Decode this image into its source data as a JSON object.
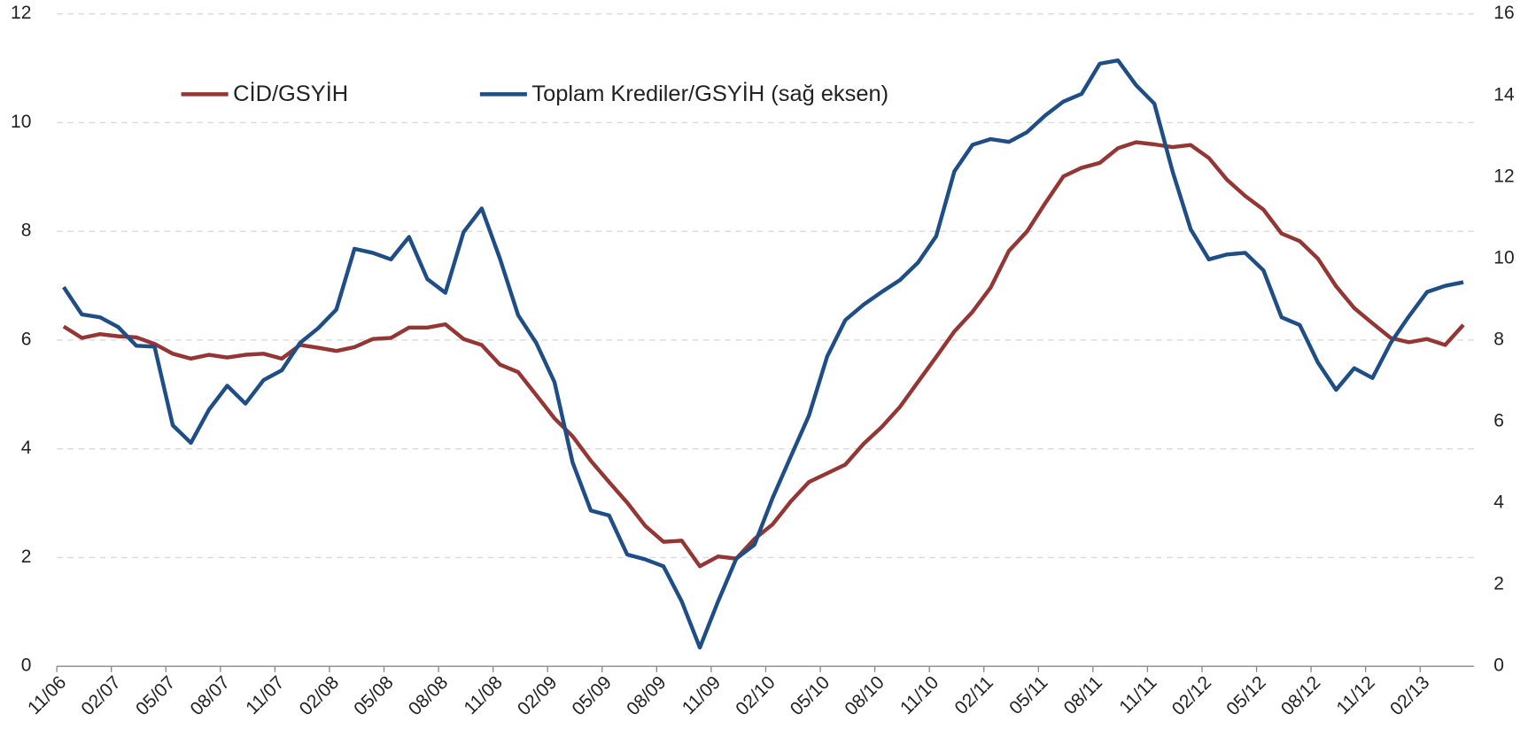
{
  "chart_data": {
    "type": "line",
    "categories": [
      "11/06",
      null,
      null,
      "02/07",
      null,
      null,
      "05/07",
      null,
      null,
      "08/07",
      null,
      null,
      "11/07",
      null,
      null,
      "02/08",
      null,
      null,
      "05/08",
      null,
      null,
      "08/08",
      null,
      null,
      "11/08",
      null,
      null,
      "02/09",
      null,
      null,
      "05/09",
      null,
      null,
      "08/09",
      null,
      null,
      "11/09",
      null,
      null,
      "02/10",
      null,
      null,
      "05/10",
      null,
      null,
      "08/10",
      null,
      null,
      "11/10",
      null,
      null,
      "02/11",
      null,
      null,
      "05/11",
      null,
      null,
      "08/11",
      null,
      null,
      "11/11",
      null,
      null,
      "02/12",
      null,
      null,
      "05/12",
      null,
      null,
      "08/12",
      null,
      null,
      "11/12",
      null,
      null,
      "02/13",
      null,
      null
    ],
    "series": [
      {
        "name": "CİD/GSYİH",
        "color": "#943634",
        "axis": "y",
        "values": [
          6.25,
          6.04,
          6.11,
          6.07,
          6.05,
          5.93,
          5.75,
          5.66,
          5.73,
          5.68,
          5.73,
          5.75,
          5.66,
          5.91,
          5.86,
          5.8,
          5.87,
          6.02,
          6.04,
          6.23,
          6.23,
          6.29,
          6.02,
          5.91,
          5.55,
          5.41,
          4.99,
          4.56,
          4.23,
          3.78,
          3.39,
          3.01,
          2.58,
          2.29,
          2.31,
          1.84,
          2.02,
          1.98,
          2.34,
          2.61,
          3.03,
          3.39,
          3.55,
          3.71,
          4.09,
          4.4,
          4.77,
          5.23,
          5.69,
          6.16,
          6.52,
          6.97,
          7.64,
          8.0,
          8.52,
          9.01,
          9.17,
          9.26,
          9.53,
          9.64,
          9.6,
          9.55,
          9.59,
          9.35,
          8.95,
          8.65,
          8.4,
          7.96,
          7.82,
          7.5,
          6.99,
          6.59,
          6.31,
          6.04,
          5.96,
          6.02,
          5.91,
          6.28
        ]
      },
      {
        "name": "Toplam Krediler/GSYİH (sağ eksen)",
        "color": "#1f4e86",
        "axis": "y2",
        "values": [
          9.3,
          8.63,
          8.56,
          8.32,
          7.86,
          7.84,
          5.91,
          5.48,
          6.3,
          6.88,
          6.44,
          7.02,
          7.26,
          7.93,
          8.29,
          8.75,
          10.24,
          10.14,
          9.98,
          10.53,
          9.5,
          9.16,
          10.65,
          11.23,
          10.0,
          8.61,
          7.93,
          6.97,
          5.0,
          3.82,
          3.7,
          2.74,
          2.62,
          2.45,
          1.59,
          0.46,
          1.59,
          2.64,
          2.98,
          4.13,
          5.14,
          6.15,
          7.6,
          8.49,
          8.87,
          9.18,
          9.47,
          9.9,
          10.55,
          12.14,
          12.79,
          12.93,
          12.86,
          13.1,
          13.51,
          13.85,
          14.04,
          14.78,
          14.86,
          14.25,
          13.8,
          12.14,
          10.72,
          9.98,
          10.1,
          10.14,
          9.71,
          8.56,
          8.37,
          7.45,
          6.78,
          7.31,
          7.07,
          7.93,
          8.58,
          9.18,
          9.33,
          9.42
        ]
      }
    ],
    "ylim": [
      0,
      12
    ],
    "yticks": [
      0,
      2,
      4,
      6,
      8,
      10,
      12
    ],
    "y2lim": [
      0,
      16
    ],
    "y2ticks": [
      0,
      2,
      4,
      6,
      8,
      10,
      12,
      14,
      16
    ],
    "grid": true,
    "legend": "top-left"
  }
}
